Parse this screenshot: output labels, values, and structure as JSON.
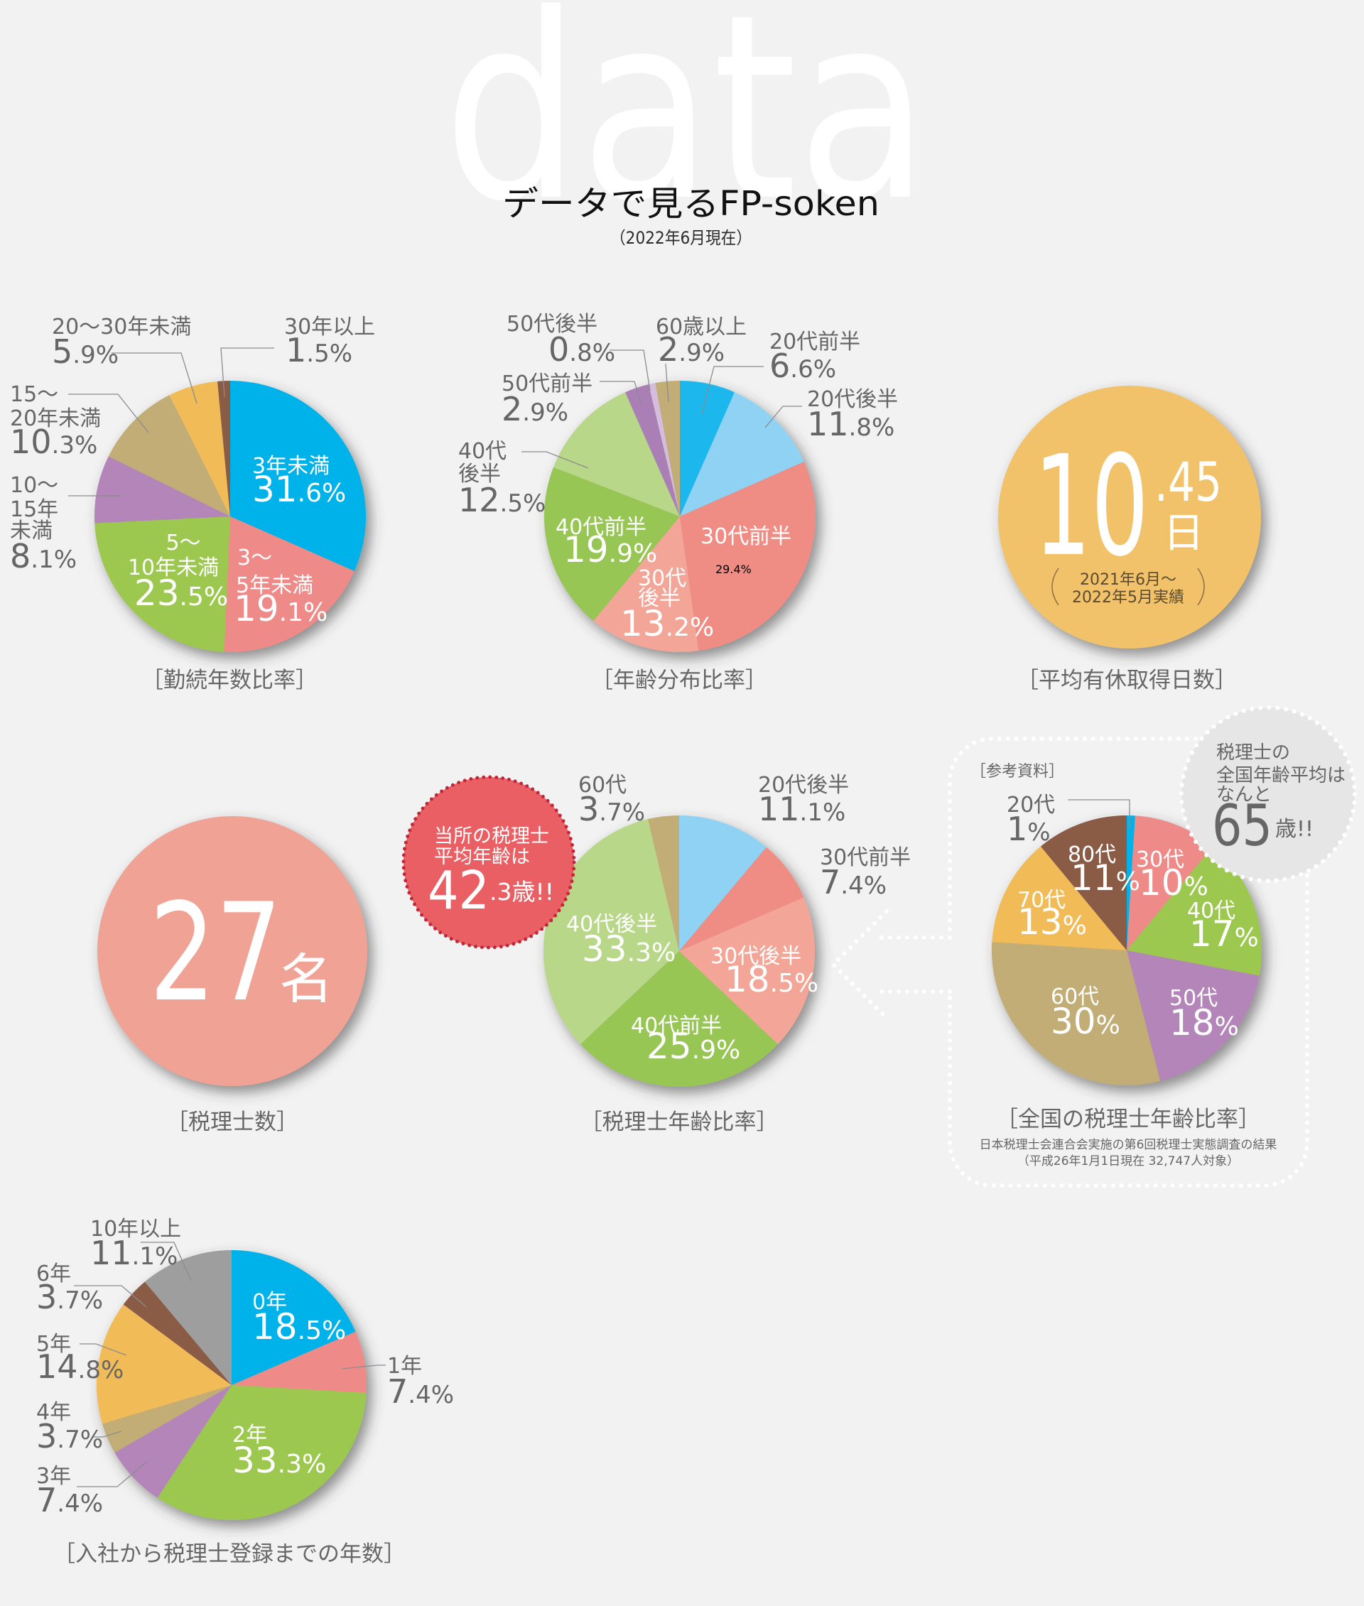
{
  "header": {
    "watermark": "data",
    "title": "データで見るFP-soken",
    "subtitle": "（2022年6月現在）"
  },
  "stats": {
    "paid_leave": {
      "integer": "10",
      "decimal": ".45",
      "unit": "日",
      "period": [
        "2021年6月〜",
        "2022年5月実績"
      ],
      "caption": "［平均有休取得日数］",
      "color": "#f1c26b"
    },
    "tax_accountant_count": {
      "number": "27",
      "unit": "名",
      "caption": "［税理士数］",
      "color": "#f0a294"
    },
    "office_avg_age": {
      "lines": [
        "当所の税理士",
        "平均年齢は"
      ],
      "integer": "42",
      "rest": ".3歳!!",
      "color": "#e95f63",
      "dot_color": "#c0283a"
    },
    "national_avg_age": {
      "lines": [
        "税理士の",
        "全国年齢平均は",
        "なんと"
      ],
      "number": "65",
      "unit": "歳!!",
      "color": "#e6e6e6"
    }
  },
  "reference": {
    "label": "［参考資料］",
    "source": [
      "日本税理士会連合会実施の第6回税理士実態調査の結果",
      "（平成26年1月1日現在 32,747人対象）"
    ]
  },
  "chart_data": [
    {
      "type": "pie",
      "title": "［勤続年数比率］",
      "categories": [
        "3年未満",
        "3〜5年未満",
        "5〜10年未満",
        "10〜15年未満",
        "15〜20年未満",
        "20〜30年未満",
        "30年以上"
      ],
      "values": [
        31.6,
        19.1,
        23.5,
        8.1,
        10.3,
        5.9,
        1.5
      ],
      "value_labels": [
        "31.6%",
        "19.1%",
        "23.5%",
        "8.1%",
        "10.3%",
        "5.9%",
        "1.5%"
      ],
      "label_lines": [
        [
          "3年未満"
        ],
        [
          "3〜",
          "5年未満"
        ],
        [
          "5〜",
          "10年未満"
        ],
        [
          "10〜",
          "15年",
          "未満"
        ],
        [
          "15〜",
          "20年未満"
        ],
        [
          "20〜30年未満"
        ],
        [
          "30年以上"
        ]
      ],
      "colors": [
        "#00b2ea",
        "#ee8a88",
        "#9dc84f",
        "#b385b8",
        "#c1ad75",
        "#f1bc59",
        "#8a5c44"
      ],
      "start": "12 o'clock, clockwise"
    },
    {
      "type": "pie",
      "title": "［年齢分布比率］",
      "categories": [
        "20代前半",
        "20代後半",
        "30代前半",
        "30代後半",
        "40代前半",
        "40代後半",
        "50代前半",
        "50代後半",
        "60歳以上"
      ],
      "values": [
        6.6,
        11.8,
        29.4,
        13.2,
        19.9,
        12.5,
        2.9,
        0.8,
        2.9
      ],
      "value_labels": [
        "6.6%",
        "11.8%",
        "29.4%",
        "13.2%",
        "19.9%",
        "12.5%",
        "2.9%",
        "0.8%",
        "2.9%"
      ],
      "label_lines": [
        [
          "20代前半"
        ],
        [
          "20代後半"
        ],
        [
          "30代前半"
        ],
        [
          "30代",
          "後半"
        ],
        [
          "40代前半"
        ],
        [
          "40代",
          "後半"
        ],
        [
          "50代前半"
        ],
        [
          "50代後半"
        ],
        [
          "60歳以上"
        ]
      ],
      "colors": [
        "#1db7ec",
        "#8fd2f3",
        "#ef8c84",
        "#f3a698",
        "#97c655",
        "#b9d789",
        "#a97fb5",
        "#d5bddc",
        "#c1ad75"
      ],
      "start": "12 o'clock, clockwise"
    },
    {
      "type": "pie",
      "title": "［税理士年齢比率］",
      "categories": [
        "20代後半",
        "30代前半",
        "30代後半",
        "40代前半",
        "40代後半",
        "60代"
      ],
      "values": [
        11.1,
        7.4,
        18.5,
        25.9,
        33.3,
        3.7
      ],
      "value_labels": [
        "11.1%",
        "7.4%",
        "18.5%",
        "25.9%",
        "33.3%",
        "3.7%"
      ],
      "label_lines": [
        [
          "20代後半"
        ],
        [
          "30代前半"
        ],
        [
          "30代後半"
        ],
        [
          "40代前半"
        ],
        [
          "40代後半"
        ],
        [
          "60代"
        ]
      ],
      "colors": [
        "#8fd2f3",
        "#ef8c84",
        "#f3a698",
        "#97c655",
        "#b9d789",
        "#c1ad75"
      ],
      "start": "12 o'clock, clockwise"
    },
    {
      "type": "pie",
      "title": "［全国の税理士年齢比率］",
      "categories": [
        "20代",
        "30代",
        "40代",
        "50代",
        "60代",
        "70代",
        "80代"
      ],
      "values": [
        1,
        10,
        17,
        18,
        30,
        13,
        11
      ],
      "value_labels": [
        "1%",
        "10%",
        "17%",
        "18%",
        "30%",
        "13%",
        "11%"
      ],
      "label_lines": [
        [
          "20代"
        ],
        [
          "30代"
        ],
        [
          "40代"
        ],
        [
          "50代"
        ],
        [
          "60代"
        ],
        [
          "70代"
        ],
        [
          "80代"
        ]
      ],
      "colors": [
        "#00b2ea",
        "#ee8a88",
        "#9dc84f",
        "#b385b8",
        "#c1ad75",
        "#f1bc59",
        "#8a5c44"
      ],
      "start": "12 o'clock, clockwise"
    },
    {
      "type": "pie",
      "title": "［入社から税理士登録までの年数］",
      "categories": [
        "0年",
        "1年",
        "2年",
        "3年",
        "4年",
        "5年",
        "6年",
        "10年以上"
      ],
      "values": [
        18.5,
        7.4,
        33.3,
        7.4,
        3.7,
        14.8,
        3.7,
        11.1
      ],
      "value_labels": [
        "18.5%",
        "7.4%",
        "33.3%",
        "7.4%",
        "3.7%",
        "14.8%",
        "3.7%",
        "11.1%"
      ],
      "label_lines": [
        [
          "0年"
        ],
        [
          "1年"
        ],
        [
          "2年"
        ],
        [
          "3年"
        ],
        [
          "4年"
        ],
        [
          "5年"
        ],
        [
          "6年"
        ],
        [
          "10年以上"
        ]
      ],
      "colors": [
        "#00b2ea",
        "#ee8a88",
        "#9dc84f",
        "#b385b8",
        "#c1ad75",
        "#f1bc59",
        "#8a5c44",
        "#9e9e9e"
      ],
      "start": "12 o'clock, clockwise"
    }
  ]
}
